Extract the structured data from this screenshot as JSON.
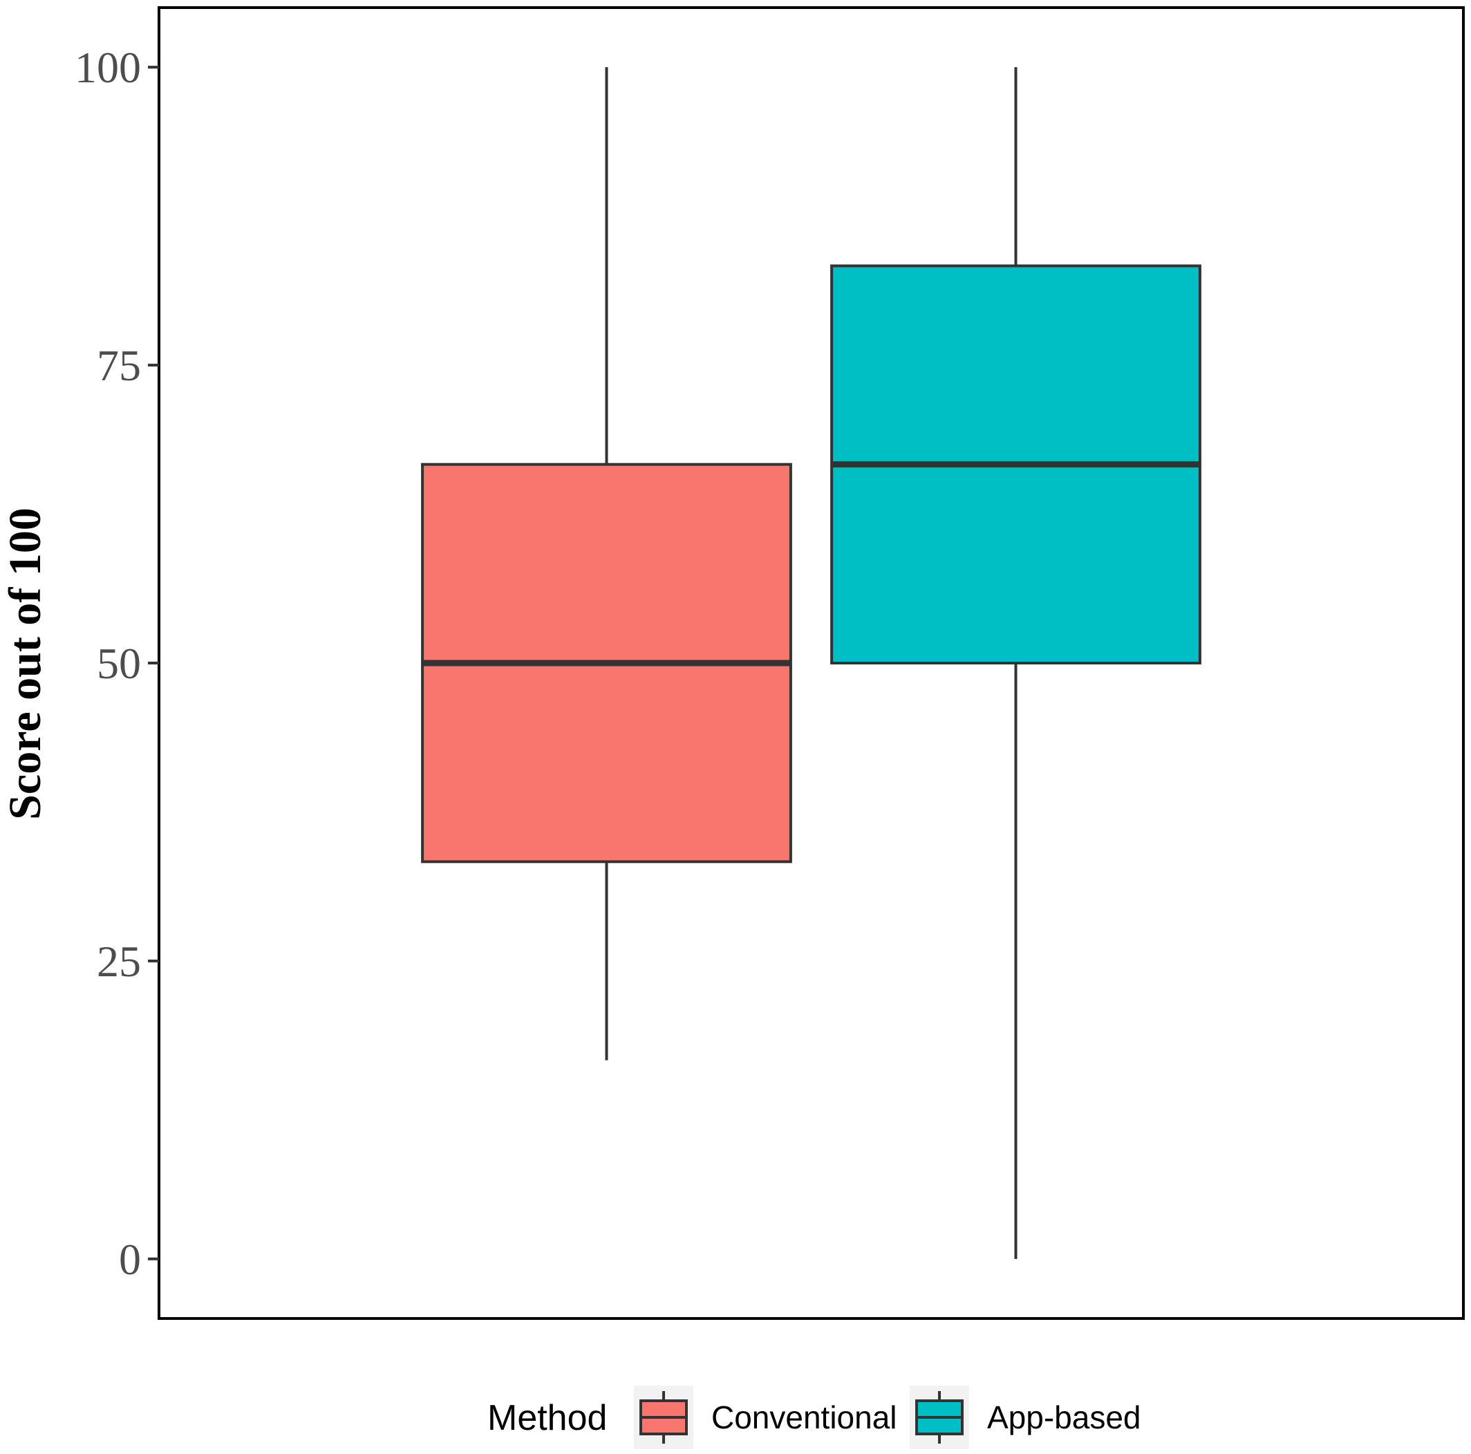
{
  "chart_data": {
    "type": "boxplot",
    "title": "",
    "xlabel": "",
    "ylabel": "Score out of 100",
    "ylim": [
      -5,
      105
    ],
    "yticks": [
      0,
      25,
      50,
      75,
      100
    ],
    "grid": false,
    "legend": {
      "title": "Method",
      "position": "bottom"
    },
    "series": [
      {
        "name": "Conventional",
        "color": "#F8766D",
        "min": 16.67,
        "q1": 33.33,
        "median": 50,
        "q3": 66.67,
        "max": 100
      },
      {
        "name": "App-based",
        "color": "#00BFC4",
        "min": 0,
        "q1": 50,
        "median": 66.67,
        "q3": 83.33,
        "max": 100
      }
    ]
  }
}
